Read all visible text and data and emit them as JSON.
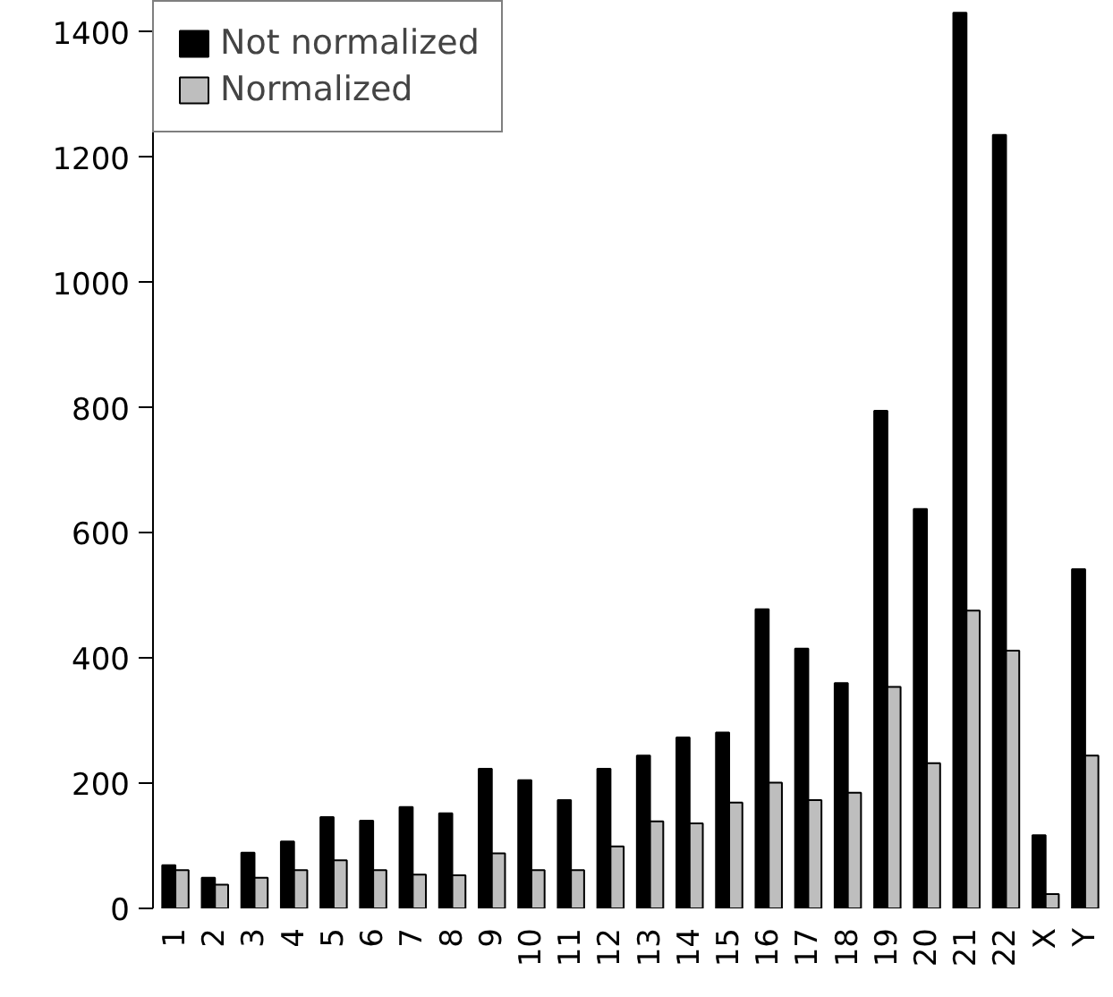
{
  "chart_data": {
    "type": "bar",
    "categories": [
      "1",
      "2",
      "3",
      "4",
      "5",
      "6",
      "7",
      "8",
      "9",
      "10",
      "11",
      "12",
      "13",
      "14",
      "15",
      "16",
      "17",
      "18",
      "19",
      "20",
      "21",
      "22",
      "X",
      "Y"
    ],
    "series": [
      {
        "name": "Not normalized",
        "color": "#000000",
        "values": [
          69,
          49,
          89,
          107,
          146,
          140,
          162,
          152,
          223,
          205,
          173,
          223,
          244,
          273,
          281,
          478,
          415,
          360,
          795,
          638,
          1431,
          1236,
          117,
          542
        ]
      },
      {
        "name": "Normalized",
        "color": "#bebebe",
        "values": [
          61,
          38,
          49,
          61,
          77,
          61,
          54,
          53,
          88,
          61,
          61,
          99,
          139,
          136,
          169,
          201,
          173,
          185,
          354,
          232,
          476,
          412,
          23,
          244
        ]
      }
    ],
    "ylim": [
      0,
      1450
    ],
    "yticks": [
      0,
      200,
      400,
      600,
      800,
      1000,
      1200,
      1400
    ],
    "legend": "top left",
    "grid": false
  }
}
